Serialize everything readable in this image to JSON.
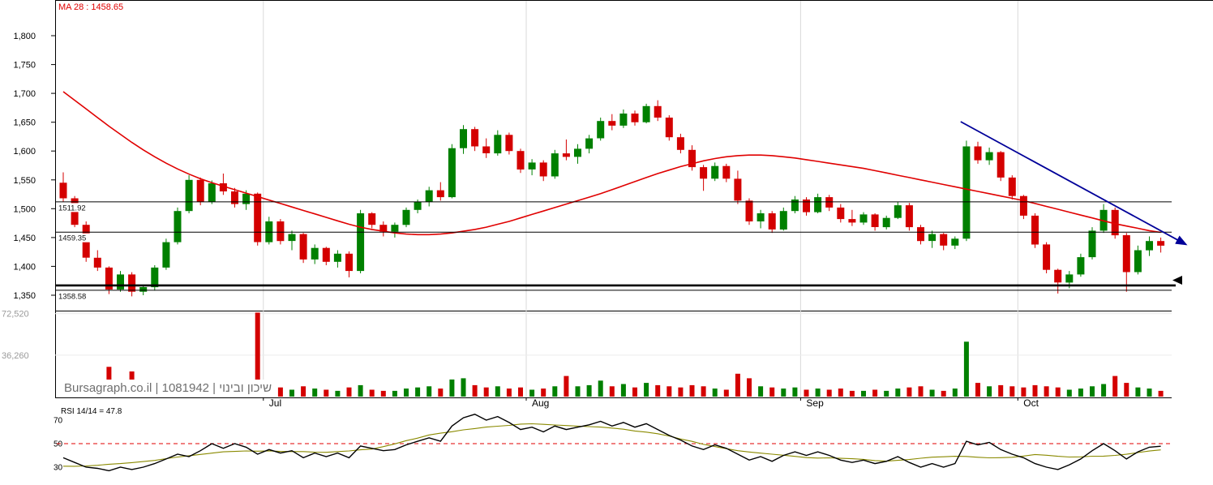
{
  "indicator_label": "MA 28 : 1458.65",
  "watermark": "Bursagraph.co.il | 1081942 | שיכון ובינוי",
  "rsi_title": "RSI 14/14 = 47.8",
  "colors": {
    "up": "#008000",
    "down": "#d40000",
    "ma": "#e00000",
    "trend": "#000099",
    "rsi_line": "#000000",
    "rsi_signal": "#8a8a00",
    "ref_dashed": "#e00000",
    "grid": "#d8d8d8",
    "axis": "#000000",
    "vol_label": "#9a9a9a"
  },
  "axes": {
    "price_ticks": [
      "1,800",
      "1,750",
      "1,700",
      "1,650",
      "1,600",
      "1,550",
      "1,500",
      "1,450",
      "1,400",
      "1,350"
    ],
    "price_tick_values": [
      1800,
      1750,
      1700,
      1650,
      1600,
      1550,
      1500,
      1450,
      1400,
      1350
    ],
    "volume_ticks": [
      {
        "label": "72,520",
        "value": 72520
      },
      {
        "label": "36,260",
        "value": 36260
      }
    ],
    "rsi_ticks": [
      {
        "label": "70",
        "value": 70
      },
      {
        "label": "50",
        "value": 50
      },
      {
        "label": "30",
        "value": 30
      }
    ],
    "months": [
      {
        "label": "Jul",
        "boundary_index": 17.5
      },
      {
        "label": "Aug",
        "boundary_index": 40.5
      },
      {
        "label": "Sep",
        "boundary_index": 64.5
      },
      {
        "label": "Oct",
        "boundary_index": 83.5
      }
    ]
  },
  "chart_data": [
    {
      "type": "candlestick",
      "name": "price",
      "ylim": [
        1330,
        1830
      ],
      "levels": [
        {
          "label": "1511.92",
          "value": 1511.92
        },
        {
          "label": "1459.35",
          "value": 1459.35
        },
        {
          "label": "1358.58",
          "value": 1358.58
        }
      ],
      "heavy_level": {
        "value": 1367,
        "arrow_value": 1376
      },
      "trendline": {
        "from_index": 78.5,
        "from_price": 1651,
        "to_index": 98.2,
        "to_price": 1438
      },
      "ma28": [
        1703,
        1688,
        1673,
        1658,
        1643,
        1629,
        1615,
        1602,
        1590,
        1579,
        1569,
        1560,
        1552,
        1545,
        1539,
        1533,
        1527,
        1521,
        1515,
        1509,
        1503,
        1497,
        1491,
        1485,
        1479,
        1473,
        1468,
        1464,
        1461,
        1458,
        1456,
        1455,
        1455,
        1456,
        1458,
        1461,
        1464,
        1468,
        1473,
        1478,
        1484,
        1490,
        1496,
        1502,
        1508,
        1514,
        1520,
        1526,
        1533,
        1540,
        1547,
        1554,
        1561,
        1567,
        1573,
        1578,
        1583,
        1587,
        1590,
        1592,
        1593,
        1593,
        1592,
        1590,
        1588,
        1585,
        1582,
        1579,
        1576,
        1573,
        1570,
        1566,
        1562,
        1558,
        1554,
        1550,
        1546,
        1542,
        1538,
        1534,
        1530,
        1526,
        1522,
        1518,
        1514,
        1509,
        1504,
        1499,
        1494,
        1489,
        1484,
        1479,
        1474,
        1470,
        1466,
        1462,
        1459
      ],
      "candles": [
        [
          1545,
          1563,
          1512,
          1518
        ],
        [
          1518,
          1522,
          1468,
          1472
        ],
        [
          1472,
          1478,
          1408,
          1415
        ],
        [
          1415,
          1428,
          1392,
          1398
        ],
        [
          1398,
          1400,
          1352,
          1360
        ],
        [
          1360,
          1392,
          1356,
          1386
        ],
        [
          1386,
          1390,
          1348,
          1356
        ],
        [
          1356,
          1368,
          1350,
          1364
        ],
        [
          1364,
          1402,
          1358,
          1398
        ],
        [
          1398,
          1448,
          1394,
          1442
        ],
        [
          1442,
          1502,
          1438,
          1496
        ],
        [
          1496,
          1558,
          1492,
          1550
        ],
        [
          1550,
          1554,
          1506,
          1512
        ],
        [
          1512,
          1549,
          1508,
          1544
        ],
        [
          1544,
          1561,
          1524,
          1530
        ],
        [
          1530,
          1536,
          1502,
          1508
        ],
        [
          1508,
          1532,
          1498,
          1526
        ],
        [
          1526,
          1528,
          1436,
          1442
        ],
        [
          1442,
          1486,
          1438,
          1478
        ],
        [
          1478,
          1482,
          1438,
          1444
        ],
        [
          1444,
          1462,
          1428,
          1456
        ],
        [
          1456,
          1458,
          1406,
          1412
        ],
        [
          1412,
          1438,
          1404,
          1432
        ],
        [
          1432,
          1434,
          1402,
          1408
        ],
        [
          1408,
          1428,
          1398,
          1422
        ],
        [
          1422,
          1426,
          1381,
          1392
        ],
        [
          1392,
          1498,
          1388,
          1492
        ],
        [
          1492,
          1494,
          1466,
          1472
        ],
        [
          1472,
          1478,
          1452,
          1460
        ],
        [
          1460,
          1476,
          1450,
          1472
        ],
        [
          1472,
          1502,
          1468,
          1498
        ],
        [
          1498,
          1516,
          1492,
          1512
        ],
        [
          1512,
          1538,
          1504,
          1532
        ],
        [
          1532,
          1546,
          1514,
          1520
        ],
        [
          1520,
          1612,
          1518,
          1605
        ],
        [
          1605,
          1645,
          1595,
          1638
        ],
        [
          1638,
          1642,
          1600,
          1608
        ],
        [
          1608,
          1622,
          1588,
          1596
        ],
        [
          1596,
          1636,
          1592,
          1628
        ],
        [
          1628,
          1632,
          1594,
          1600
        ],
        [
          1600,
          1604,
          1562,
          1568
        ],
        [
          1568,
          1586,
          1558,
          1580
        ],
        [
          1580,
          1584,
          1548,
          1556
        ],
        [
          1556,
          1602,
          1552,
          1596
        ],
        [
          1596,
          1620,
          1584,
          1590
        ],
        [
          1590,
          1612,
          1578,
          1604
        ],
        [
          1604,
          1628,
          1596,
          1622
        ],
        [
          1622,
          1658,
          1618,
          1652
        ],
        [
          1652,
          1664,
          1636,
          1644
        ],
        [
          1644,
          1672,
          1640,
          1665
        ],
        [
          1665,
          1670,
          1644,
          1650
        ],
        [
          1650,
          1682,
          1648,
          1678
        ],
        [
          1678,
          1688,
          1652,
          1658
        ],
        [
          1658,
          1662,
          1618,
          1624
        ],
        [
          1624,
          1630,
          1596,
          1602
        ],
        [
          1602,
          1610,
          1566,
          1572
        ],
        [
          1572,
          1576,
          1531,
          1552
        ],
        [
          1552,
          1580,
          1548,
          1574
        ],
        [
          1574,
          1578,
          1546,
          1552
        ],
        [
          1552,
          1566,
          1508,
          1514
        ],
        [
          1514,
          1518,
          1472,
          1478
        ],
        [
          1478,
          1498,
          1466,
          1492
        ],
        [
          1492,
          1496,
          1458,
          1464
        ],
        [
          1464,
          1502,
          1462,
          1496
        ],
        [
          1496,
          1522,
          1492,
          1516
        ],
        [
          1516,
          1520,
          1488,
          1494
        ],
        [
          1494,
          1526,
          1492,
          1520
        ],
        [
          1520,
          1524,
          1496,
          1502
        ],
        [
          1502,
          1508,
          1476,
          1482
        ],
        [
          1482,
          1498,
          1470,
          1476
        ],
        [
          1476,
          1494,
          1472,
          1490
        ],
        [
          1490,
          1492,
          1462,
          1468
        ],
        [
          1468,
          1488,
          1464,
          1484
        ],
        [
          1484,
          1512,
          1482,
          1506
        ],
        [
          1506,
          1510,
          1462,
          1468
        ],
        [
          1468,
          1472,
          1438,
          1444
        ],
        [
          1444,
          1462,
          1432,
          1456
        ],
        [
          1456,
          1458,
          1428,
          1436
        ],
        [
          1436,
          1452,
          1430,
          1448
        ],
        [
          1448,
          1618,
          1444,
          1608
        ],
        [
          1608,
          1616,
          1578,
          1584
        ],
        [
          1584,
          1606,
          1576,
          1598
        ],
        [
          1598,
          1600,
          1548,
          1554
        ],
        [
          1554,
          1558,
          1516,
          1522
        ],
        [
          1522,
          1524,
          1482,
          1488
        ],
        [
          1488,
          1492,
          1432,
          1438
        ],
        [
          1438,
          1442,
          1388,
          1394
        ],
        [
          1394,
          1396,
          1353,
          1372
        ],
        [
          1372,
          1392,
          1362,
          1386
        ],
        [
          1386,
          1422,
          1382,
          1416
        ],
        [
          1416,
          1468,
          1412,
          1462
        ],
        [
          1462,
          1508,
          1458,
          1498
        ],
        [
          1498,
          1502,
          1448,
          1454
        ],
        [
          1454,
          1458,
          1356,
          1390
        ],
        [
          1390,
          1436,
          1386,
          1428
        ],
        [
          1428,
          1452,
          1418,
          1444
        ],
        [
          1444,
          1450,
          1424,
          1436
        ]
      ]
    },
    {
      "type": "bar",
      "name": "volume",
      "ylim": [
        0,
        75000
      ],
      "values": [
        8000,
        10000,
        14000,
        9000,
        26000,
        12000,
        22000,
        8000,
        10000,
        9000,
        11000,
        14000,
        9000,
        8000,
        7000,
        6000,
        8000,
        73500,
        12000,
        8000,
        6000,
        9000,
        7000,
        6000,
        5000,
        8000,
        10000,
        6000,
        5000,
        5000,
        7000,
        8000,
        9000,
        7000,
        15000,
        16000,
        10000,
        8000,
        9000,
        7000,
        8000,
        6000,
        7000,
        9000,
        18000,
        9000,
        10000,
        14000,
        9000,
        11000,
        8000,
        12000,
        10000,
        9000,
        8000,
        10000,
        9000,
        7000,
        6000,
        20000,
        16000,
        9000,
        8000,
        7000,
        8000,
        6000,
        7000,
        6000,
        7000,
        5000,
        5000,
        6000,
        5000,
        7000,
        8000,
        9000,
        6000,
        5000,
        7000,
        48000,
        12000,
        9000,
        10000,
        9000,
        8000,
        10000,
        9000,
        8000,
        6000,
        7000,
        9000,
        11000,
        18000,
        12000,
        8000,
        7000,
        5000
      ]
    },
    {
      "type": "line",
      "name": "rsi",
      "ylim": [
        20,
        80
      ],
      "ref": 50,
      "values": [
        38,
        34,
        30,
        29,
        27,
        30,
        28,
        30,
        33,
        37,
        41,
        39,
        44,
        50,
        46,
        50,
        47,
        41,
        45,
        42,
        44,
        38,
        42,
        39,
        42,
        38,
        48,
        46,
        44,
        45,
        49,
        52,
        55,
        52,
        65,
        72,
        75,
        70,
        73,
        68,
        62,
        64,
        60,
        65,
        62,
        64,
        66,
        69,
        65,
        68,
        64,
        67,
        62,
        57,
        53,
        48,
        45,
        49,
        46,
        41,
        36,
        39,
        35,
        40,
        43,
        40,
        43,
        40,
        36,
        34,
        36,
        33,
        35,
        39,
        34,
        30,
        33,
        30,
        33,
        52,
        49,
        51,
        45,
        41,
        38,
        33,
        30,
        28,
        32,
        37,
        44,
        50,
        44,
        37,
        43,
        47,
        47.8
      ]
    }
  ]
}
